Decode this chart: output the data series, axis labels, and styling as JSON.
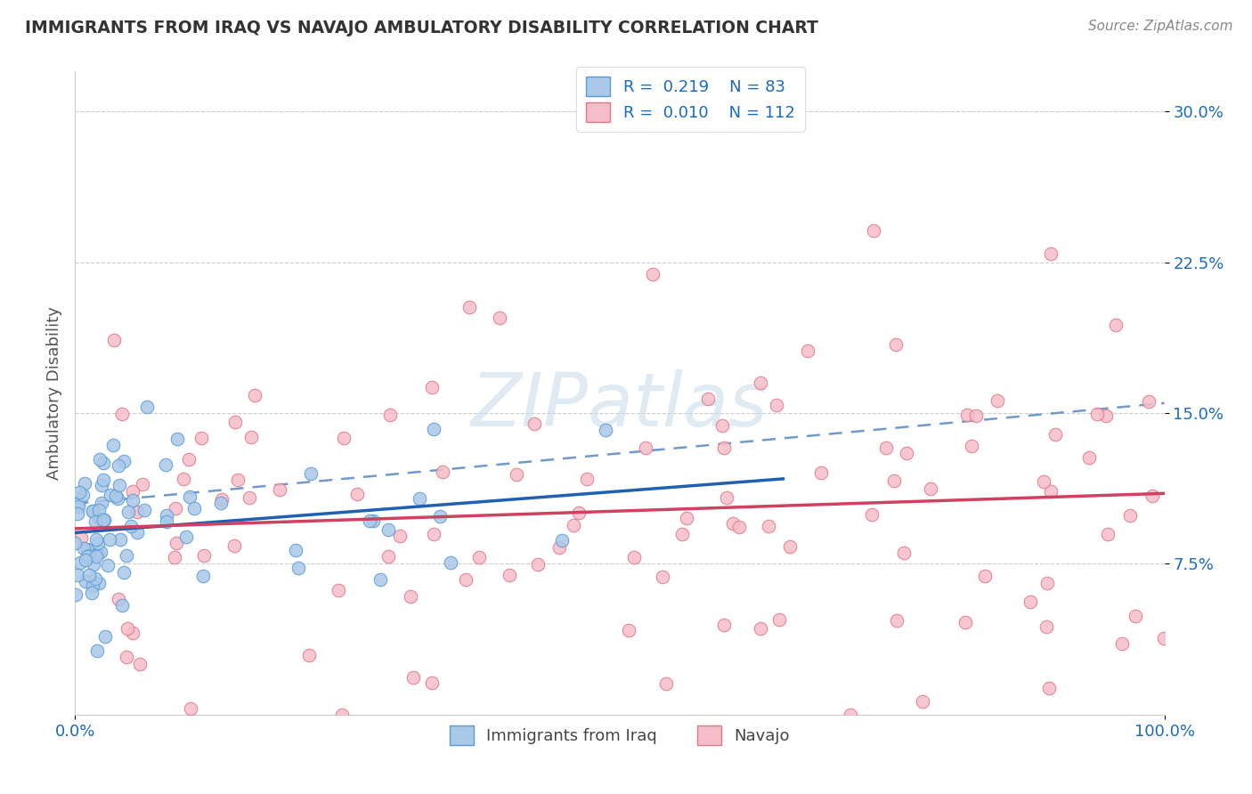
{
  "title": "IMMIGRANTS FROM IRAQ VS NAVAJO AMBULATORY DISABILITY CORRELATION CHART",
  "source": "Source: ZipAtlas.com",
  "ylabel": "Ambulatory Disability",
  "xlim": [
    0.0,
    100.0
  ],
  "ylim": [
    0.0,
    32.0
  ],
  "yticks": [
    7.5,
    15.0,
    22.5,
    30.0
  ],
  "xticks": [
    0.0,
    100.0
  ],
  "xtick_labels": [
    "0.0%",
    "100.0%"
  ],
  "ytick_labels": [
    "7.5%",
    "15.0%",
    "22.5%",
    "30.0%"
  ],
  "series1_name": "Immigrants from Iraq",
  "series1_fill_color": "#aac8e8",
  "series1_edge_color": "#5b9bd5",
  "series1_R": 0.219,
  "series1_N": 83,
  "series2_name": "Navajo",
  "series2_fill_color": "#f5bdc8",
  "series2_edge_color": "#e07888",
  "series2_R": 0.01,
  "series2_N": 112,
  "trend1_color": "#2060b0",
  "trend2_color": "#d04060",
  "trend_dash_color": "#7099cc",
  "legend_text_color": "#1a6bbf",
  "watermark_color": "#c8daea",
  "background_color": "#ffffff",
  "grid_color": "#cccccc",
  "title_color": "#333333",
  "source_color": "#888888",
  "tick_color": "#1a6bbf",
  "ylabel_color": "#555555"
}
